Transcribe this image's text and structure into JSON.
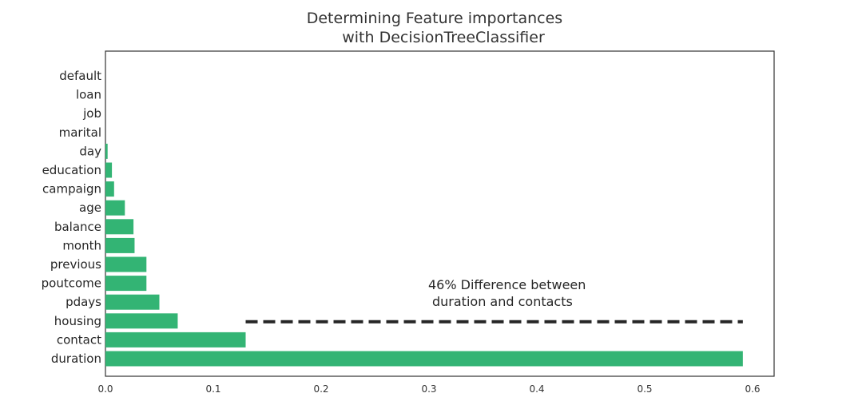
{
  "chart_data": {
    "type": "bar",
    "orientation": "horizontal",
    "title_lines": [
      "Determining Feature importances",
      "with DecisionTreeClassifier"
    ],
    "categories": [
      "duration",
      "contact",
      "housing",
      "pdays",
      "poutcome",
      "previous",
      "month",
      "balance",
      "age",
      "campaign",
      "education",
      "day",
      "marital",
      "job",
      "loan",
      "default"
    ],
    "values": [
      0.591,
      0.13,
      0.067,
      0.05,
      0.038,
      0.038,
      0.027,
      0.026,
      0.018,
      0.008,
      0.006,
      0.002,
      0.0,
      0.0,
      0.0,
      0.0
    ],
    "bar_color": "#33b474",
    "xlim": [
      0,
      0.62
    ],
    "xticks": [
      0.0,
      0.1,
      0.2,
      0.3,
      0.4,
      0.5,
      0.6
    ],
    "xtick_labels": [
      "0.0",
      "0.1",
      "0.2",
      "0.3",
      "0.4",
      "0.5",
      "0.6"
    ],
    "grid": false,
    "annotation": {
      "lines": [
        "46% Difference between",
        "duration and contacts"
      ],
      "line_x_start": 0.13,
      "line_x_end": 0.591,
      "line_y_category": "housing",
      "line_color": "#262626"
    }
  }
}
